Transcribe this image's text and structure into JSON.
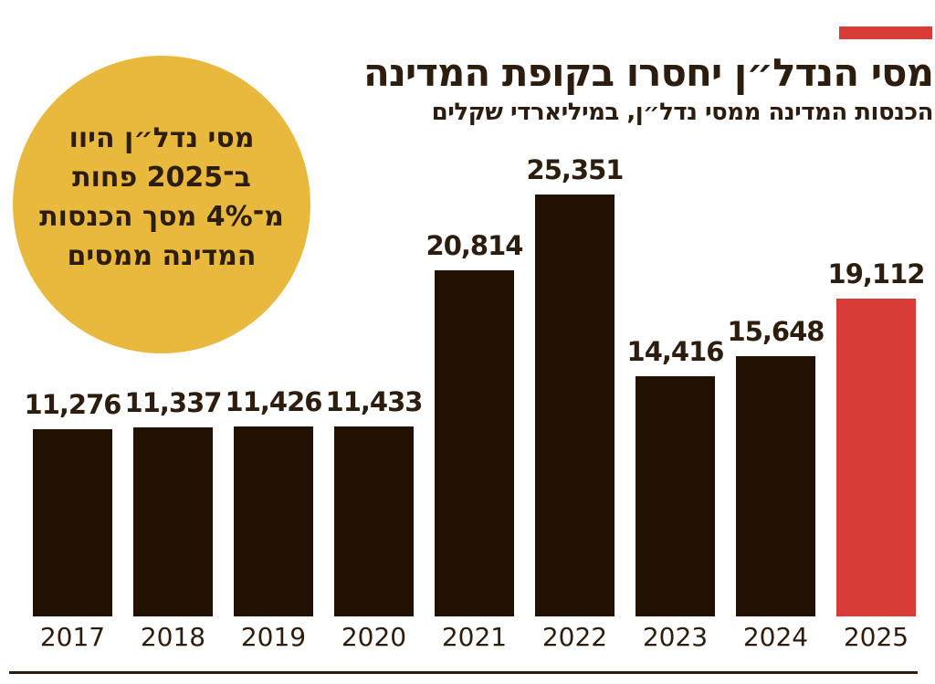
{
  "colors": {
    "text": "#2D1D0E",
    "bar_dark": "#221103",
    "highlight_red": "#D93B36",
    "callout_yellow": "#E8B93C",
    "background": "#FFFFFF"
  },
  "header": {
    "title": "מסי הנדל״ן יחסרו בקופת המדינה",
    "subtitle": "הכנסות המדינה ממסי נדל״ן, במיליארדי שקלים"
  },
  "callout": {
    "lines": [
      "מסי נדל״ן היוו",
      "ב־2025 פחות",
      "מ־4% מסך הכנסות",
      "המדינה ממסים"
    ]
  },
  "chart_data": {
    "type": "bar",
    "title": "מסי הנדל״ן יחסרו בקופת המדינה",
    "subtitle": "הכנסות המדינה ממסי נדל״ן, במיליארדי שקלים",
    "categories": [
      "2017",
      "2018",
      "2019",
      "2020",
      "2021",
      "2022",
      "2023",
      "2024",
      "2025"
    ],
    "values": [
      11276,
      11337,
      11426,
      11433,
      20814,
      25351,
      14416,
      15648,
      19112
    ],
    "value_labels": [
      "11,276",
      "11,337",
      "11,426",
      "11,433",
      "20,814",
      "25,351",
      "14,416",
      "15,648",
      "19,112"
    ],
    "highlight_category": "2025",
    "bar_color": "#221103",
    "highlight_color": "#D93B36",
    "grid": false,
    "legend": "none",
    "value_labels_position": "above-bars",
    "ylim": [
      0,
      25351
    ]
  }
}
